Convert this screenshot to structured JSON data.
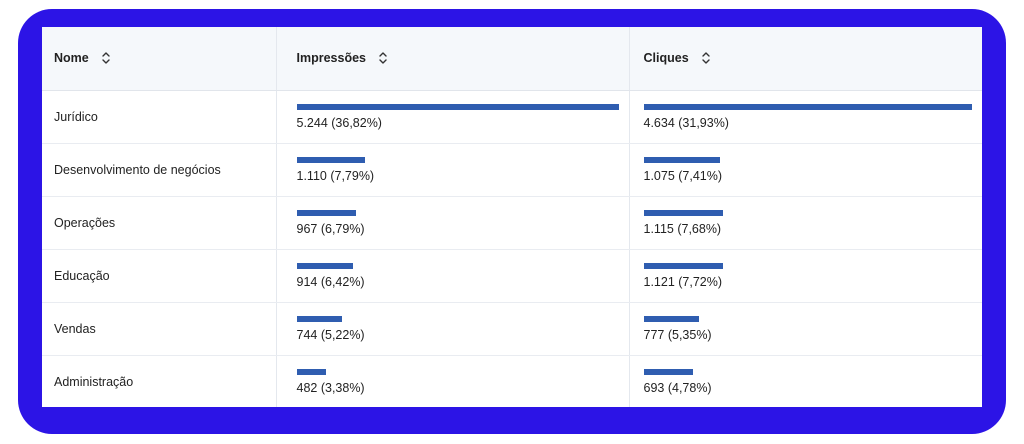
{
  "table": {
    "columns": [
      {
        "label": "Nome"
      },
      {
        "label": "Impressões"
      },
      {
        "label": "Cliques"
      }
    ],
    "rows": [
      {
        "name": "Jurídico",
        "impressions": {
          "text": "5.244 (36,82%)",
          "value": 5244
        },
        "clicks": {
          "text": "4.634 (31,93%)",
          "value": 4634
        }
      },
      {
        "name": "Desenvolvimento de negócios",
        "impressions": {
          "text": "1.110 (7,79%)",
          "value": 1110
        },
        "clicks": {
          "text": "1.075 (7,41%)",
          "value": 1075
        }
      },
      {
        "name": "Operações",
        "impressions": {
          "text": "967 (6,79%)",
          "value": 967
        },
        "clicks": {
          "text": "1.115 (7,68%)",
          "value": 1115
        }
      },
      {
        "name": "Educação",
        "impressions": {
          "text": "914 (6,42%)",
          "value": 914
        },
        "clicks": {
          "text": "1.121 (7,72%)",
          "value": 1121
        }
      },
      {
        "name": "Vendas",
        "impressions": {
          "text": "744 (5,22%)",
          "value": 744
        },
        "clicks": {
          "text": "777 (5,35%)",
          "value": 777
        }
      },
      {
        "name": "Administração",
        "impressions": {
          "text": "482 (3,38%)",
          "value": 482
        },
        "clicks": {
          "text": "693 (4,78%)",
          "value": 693
        }
      }
    ]
  },
  "colors": {
    "frame": "#2c14e6",
    "bar": "#2f5db0",
    "header_bg": "#f5f8fb"
  },
  "icons": {
    "sort": "sort-updown-icon"
  }
}
